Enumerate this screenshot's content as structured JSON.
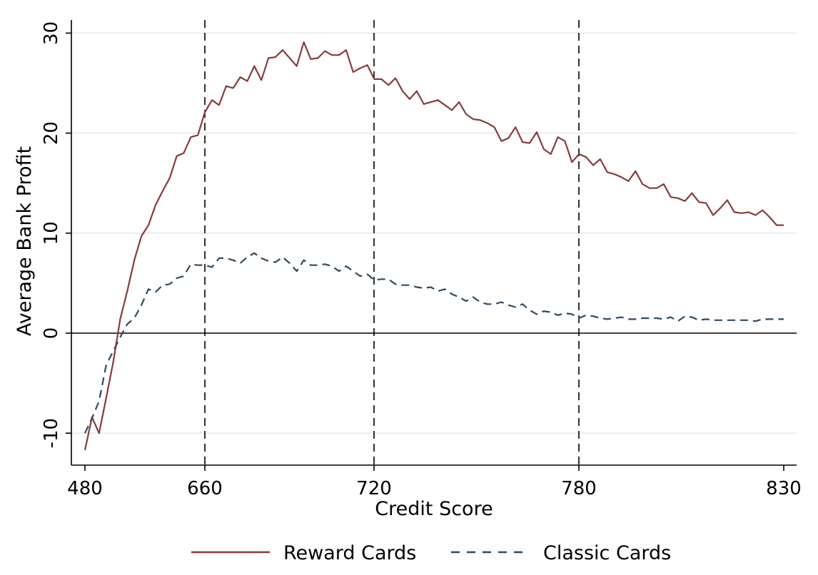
{
  "chart_data": {
    "type": "line",
    "xlabel": "Credit Score",
    "ylabel": "Average Bank Profit",
    "x_ticks": [
      "480",
      "660",
      "720",
      "780",
      "830"
    ],
    "y_ticks": [
      "-10",
      "0",
      "10",
      "20",
      "30"
    ],
    "ylim": [
      -13,
      31
    ],
    "grid": "horizontal",
    "reference_lines": {
      "horizontal_at_y": 0,
      "vertical_dashed_at_x": [
        "660",
        "720",
        "780"
      ]
    },
    "legend_placement": "bottom-center",
    "series": [
      {
        "name": "Reward Cards",
        "color": "#8b3a3a",
        "style": "solid",
        "values": [
          -11.7,
          -8.4,
          -10.0,
          -6.5,
          -2.9,
          1.4,
          4.2,
          7.3,
          9.7,
          10.8,
          12.8,
          14.2,
          15.5,
          17.7,
          18.0,
          19.6,
          19.8,
          22.1,
          23.3,
          22.8,
          24.7,
          24.5,
          25.6,
          25.2,
          26.7,
          25.3,
          27.5,
          27.6,
          28.3,
          27.5,
          26.7,
          29.1,
          27.4,
          27.5,
          28.2,
          27.8,
          27.8,
          28.3,
          26.1,
          26.5,
          26.8,
          25.4,
          25.4,
          24.8,
          25.5,
          24.2,
          23.4,
          24.2,
          22.9,
          23.1,
          23.3,
          22.8,
          22.3,
          23.1,
          21.9,
          21.4,
          21.3,
          21.0,
          20.6,
          19.2,
          19.5,
          20.6,
          19.1,
          19.0,
          20.1,
          18.4,
          17.9,
          19.6,
          19.2,
          17.1,
          17.9,
          17.6,
          16.8,
          17.4,
          16.1,
          15.9,
          15.6,
          15.2,
          16.2,
          14.9,
          14.5,
          14.5,
          14.9,
          13.6,
          13.5,
          13.2,
          14.0,
          13.1,
          13.0,
          11.8,
          12.5,
          13.3,
          12.1,
          12.0,
          12.1,
          11.8,
          12.3,
          11.6,
          10.8,
          10.8
        ]
      },
      {
        "name": "Classic Cards",
        "color": "#2e4a62",
        "style": "dashed",
        "values": [
          -10.0,
          -8.5,
          -6.8,
          -3.2,
          -1.8,
          -0.4,
          0.9,
          1.5,
          2.8,
          4.4,
          4.1,
          4.8,
          4.9,
          5.5,
          5.7,
          6.9,
          6.8,
          6.8,
          6.6,
          7.5,
          7.5,
          7.3,
          7.0,
          7.6,
          8.0,
          7.5,
          7.2,
          7.1,
          7.6,
          7.0,
          6.2,
          7.3,
          6.8,
          6.8,
          6.9,
          6.7,
          6.2,
          6.7,
          6.2,
          5.7,
          5.9,
          5.3,
          5.4,
          5.4,
          4.9,
          4.8,
          4.8,
          4.6,
          4.5,
          4.6,
          4.2,
          4.4,
          3.9,
          3.6,
          3.2,
          3.6,
          3.1,
          2.9,
          2.9,
          3.1,
          2.8,
          2.6,
          2.9,
          2.3,
          1.9,
          2.2,
          2.1,
          1.8,
          2.0,
          1.9,
          1.5,
          1.8,
          1.7,
          1.5,
          1.4,
          1.5,
          1.6,
          1.4,
          1.4,
          1.5,
          1.5,
          1.5,
          1.4,
          1.6,
          1.2,
          1.7,
          1.6,
          1.3,
          1.4,
          1.3,
          1.3,
          1.3,
          1.3,
          1.3,
          1.3,
          1.2,
          1.4,
          1.4,
          1.4,
          1.4
        ]
      }
    ]
  }
}
